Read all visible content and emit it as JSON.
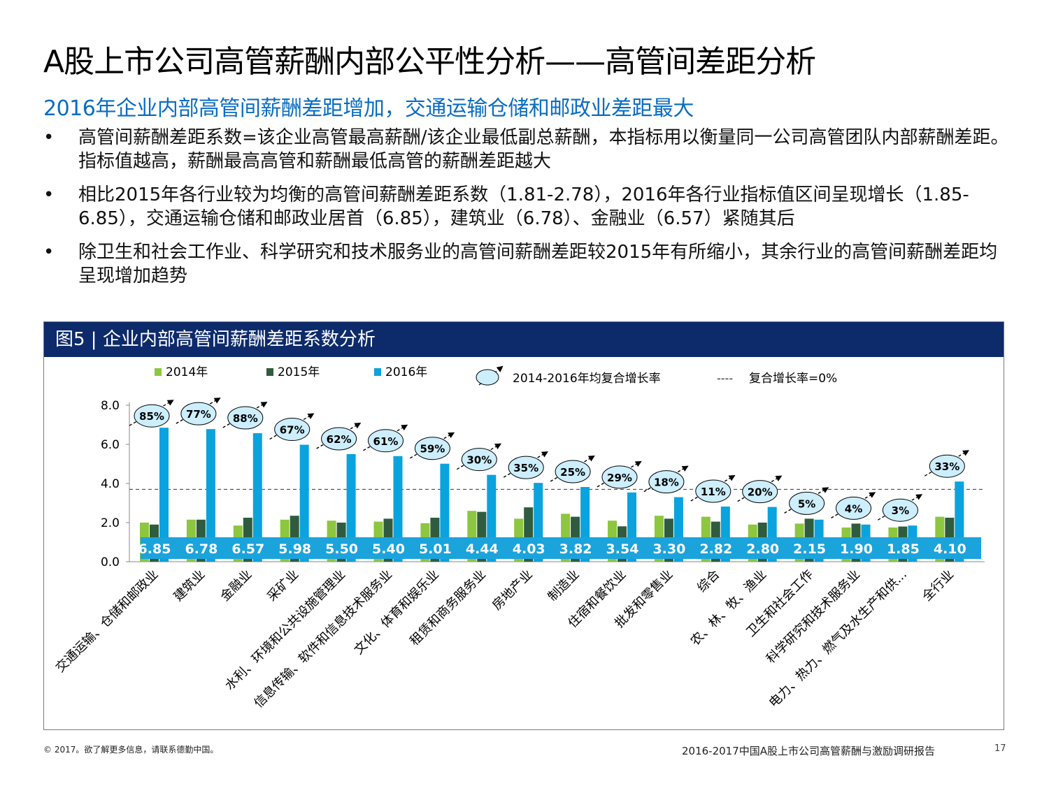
{
  "page": {
    "title": "A股上市公司高管薪酬内部公平性分析——高管间差距分析",
    "subtitle": "2016年企业内部高管间薪酬差距增加，交通运输仓储和邮政业差距最大",
    "bullets": [
      "高管间薪酬差距系数=该企业高管最高薪酬/该企业最低副总薪酬，本指标用以衡量同一公司高管团队内部薪酬差距。指标值越高，薪酬最高高管和薪酬最低高管的薪酬差距越大",
      "相比2015年各行业较为均衡的高管间薪酬差距系数（1.81-2.78），2016年各行业指标值区间呈现增长（1.85-6.85），交通运输仓储和邮政业居首（6.85），建筑业（6.78）、金融业（6.57）紧随其后",
      "除卫生和社会工作业、科学研究和技术服务业的高管间薪酬差距较2015年有所缩小，其余行业的高管间薪酬差距均呈现增加趋势"
    ],
    "bullet_symbol": "•",
    "figure_title": "图5 | 企业内部高管间薪酬差距系数分析",
    "footer_left": "© 2017。欲了解更多信息，请联系德勤中国。",
    "footer_right": "2016-2017中国A股上市公司高管薪酬与激励调研报告",
    "page_number": "17"
  },
  "colors": {
    "s2014": "#8dc63f",
    "s2015": "#2f5c3f",
    "s2016": "#0aa3de",
    "label_box": "#1ba3dc",
    "bubble": "#cdeefc",
    "header": "#0d2b6b",
    "subtitle": "#0a6dc2"
  },
  "chart_data": {
    "type": "bar",
    "categories": [
      "交通运输、仓储和邮政业",
      "建筑业",
      "金融业",
      "采矿业",
      "水利、环境和公共设施管理业",
      "信息传输、软件和信息技术服务业",
      "文化、体育和娱乐业",
      "租赁和商务服务业",
      "房地产业",
      "制造业",
      "住宿和餐饮业",
      "批发和零售业",
      "综合",
      "农、林、牧、渔业",
      "卫生和社会工作",
      "科学研究和技术服务业",
      "电力、热力、燃气及水生产和供...",
      "全行业"
    ],
    "series": [
      {
        "name": "2014年",
        "values": [
          2.0,
          2.15,
          1.85,
          2.15,
          2.1,
          2.05,
          1.97,
          2.6,
          2.2,
          2.45,
          2.1,
          2.35,
          2.3,
          1.9,
          1.95,
          1.75,
          1.75,
          2.3
        ]
      },
      {
        "name": "2015年",
        "values": [
          1.9,
          2.15,
          2.25,
          2.35,
          2.0,
          2.2,
          2.25,
          2.55,
          2.78,
          2.3,
          1.81,
          2.2,
          2.05,
          2.0,
          2.2,
          1.95,
          1.8,
          2.25
        ]
      },
      {
        "name": "2016年",
        "values": [
          6.85,
          6.78,
          6.57,
          5.98,
          5.5,
          5.4,
          5.01,
          4.44,
          4.03,
          3.82,
          3.54,
          3.3,
          2.82,
          2.8,
          2.15,
          1.9,
          1.85,
          4.1
        ]
      }
    ],
    "value_labels": [
      "6.85",
      "6.78",
      "6.57",
      "5.98",
      "5.50",
      "5.40",
      "5.01",
      "4.44",
      "4.03",
      "3.82",
      "3.54",
      "3.30",
      "2.82",
      "2.80",
      "2.15",
      "1.90",
      "1.85",
      "4.10"
    ],
    "cagr": [
      "85%",
      "77%",
      "88%",
      "67%",
      "62%",
      "61%",
      "59%",
      "30%",
      "35%",
      "25%",
      "29%",
      "18%",
      "11%",
      "20%",
      "5%",
      "4%",
      "3%",
      "33%"
    ],
    "cagr_values": [
      85,
      77,
      88,
      67,
      62,
      61,
      59,
      30,
      35,
      25,
      29,
      18,
      11,
      20,
      5,
      4,
      3,
      33
    ],
    "yticks": [
      "0.0",
      "2.0",
      "4.0",
      "6.0",
      "8.0"
    ],
    "ylim": [
      0,
      8
    ],
    "reference_line_value": 3.7,
    "legend": {
      "s2014": "2014年",
      "s2015": "2015年",
      "s2016": "2016年",
      "cagr": "2014-2016年均复合增长率",
      "zero_line_symbol": "----",
      "zero_line": "复合增长率=0%"
    },
    "legend_position": "top"
  }
}
